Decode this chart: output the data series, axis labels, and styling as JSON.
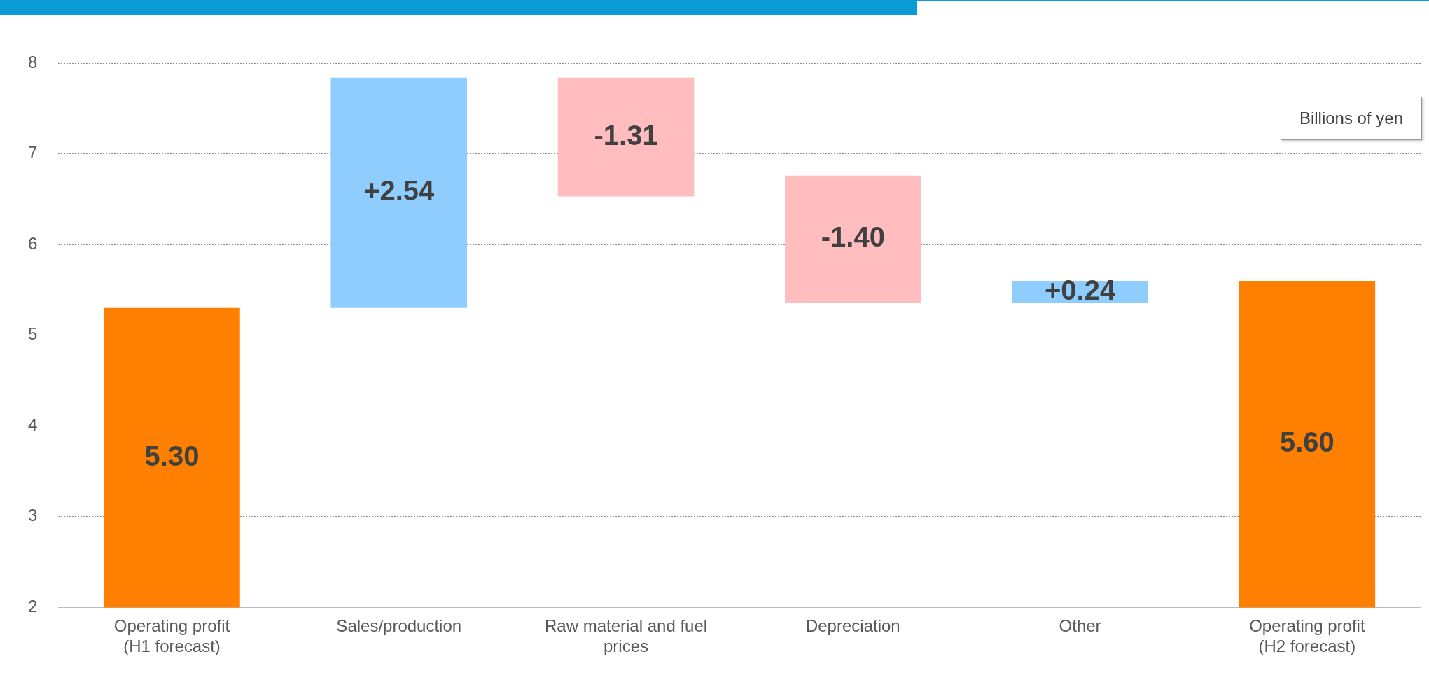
{
  "chart_data": {
    "type": "bar",
    "categories": [
      "Operating profit\n(H1 forecast)",
      "Sales/production",
      "Raw material and fuel\nprices",
      "Depreciation",
      "Other",
      "Operating profit\n(H2 forecast)"
    ],
    "values": [
      5.3,
      2.54,
      -1.31,
      -1.4,
      0.24,
      5.6
    ],
    "base": [
      0,
      5.3,
      7.84,
      6.76,
      5.36,
      0
    ],
    "value_labels": [
      "5.30",
      "+2.54",
      "-1.31",
      "-1.40",
      "+0.24",
      "5.60"
    ],
    "colors": [
      "#ff7f00",
      "#8ecdfd",
      "#ffbdbf",
      "#ffbdbf",
      "#8ecdfd",
      "#ff7f00"
    ],
    "ylim": [
      2,
      8
    ],
    "yticks": [
      2,
      3,
      4,
      5,
      6,
      7,
      8
    ],
    "grid": "y",
    "legend": false,
    "annotations": [
      "Billions of yen"
    ]
  }
}
